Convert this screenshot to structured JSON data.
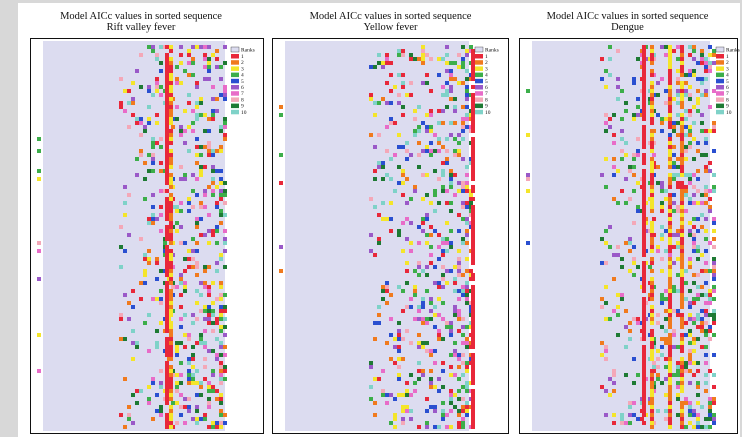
{
  "chart_data": [
    {
      "type": "heatmap",
      "title": "Model AICc values in sorted sequence",
      "subtitle": "Rift valley fever",
      "legend": {
        "title": "Ranks",
        "entries": [
          "1",
          "2",
          "3",
          "4",
          "5",
          "6",
          "7",
          "8",
          "9",
          "10"
        ]
      },
      "background_color": "#dcdcf0",
      "columns": 48
    },
    {
      "type": "heatmap",
      "title": "Model AICc values in sorted sequence",
      "subtitle": "Yellow fever",
      "legend": {
        "title": "Ranks",
        "entries": [
          "1",
          "2",
          "3",
          "4",
          "5",
          "6",
          "7",
          "8",
          "9",
          "10"
        ]
      },
      "background_color": "#dcdcf0",
      "columns": 48
    },
    {
      "type": "heatmap",
      "title": "Model AICc values in sorted sequence",
      "subtitle": "Dengue",
      "legend": {
        "title": "Ranks",
        "entries": [
          "1",
          "2",
          "3",
          "4",
          "5",
          "6",
          "7",
          "8",
          "9",
          "10"
        ]
      },
      "background_color": "#dcdcf0",
      "columns": 48
    }
  ],
  "rank_colors": [
    "#e8283a",
    "#f07a1e",
    "#f4e52a",
    "#3cae4a",
    "#2a4fd0",
    "#9a59c8",
    "#e86cc8",
    "#f4a8b8",
    "#1e7a34",
    "#7fd2c8"
  ]
}
